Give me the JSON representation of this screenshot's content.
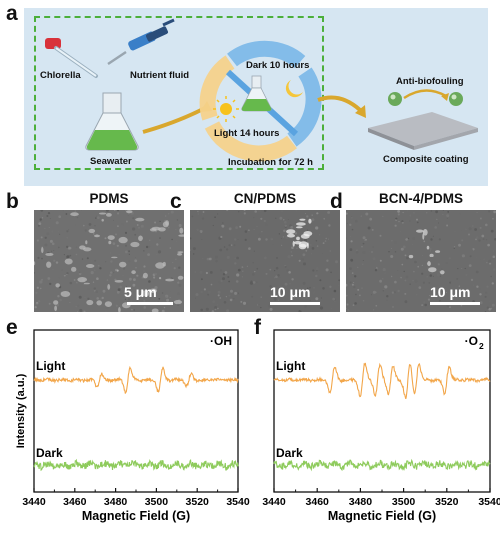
{
  "panel_letters": {
    "a": "a",
    "b": "b",
    "c": "c",
    "d": "d",
    "e": "e",
    "f": "f"
  },
  "panel_a": {
    "chlorella": "Chlorella",
    "nutrient_fluid": "Nutrient fluid",
    "seawater": "Seawater",
    "dark": "Dark 10 hours",
    "light": "Light 14 hours",
    "incubation": "Incubation for 72 h",
    "anti_biofouling": "Anti-biofouling",
    "composite_coating": "Composite coating"
  },
  "sem": [
    {
      "title": "PDMS",
      "scale": "5 μm"
    },
    {
      "title": "CN/PDMS",
      "scale": "10 μm"
    },
    {
      "title": "BCN-4/PDMS",
      "scale": "10 μm"
    }
  ],
  "chart_data": [
    {
      "type": "line",
      "title": "·OH",
      "xlabel": "Magnetic Field (G)",
      "ylabel": "Intensity (a.u.)",
      "xlim": [
        3440,
        3540
      ],
      "xticks": [
        "3440",
        "3460",
        "3480",
        "3500",
        "3520",
        "3540"
      ],
      "series": [
        {
          "name": "Light",
          "color": "#f2a64a",
          "peaks": [
            3472,
            3486,
            3502,
            3516
          ]
        },
        {
          "name": "Dark",
          "color": "#8ecb5c",
          "peaks": []
        }
      ]
    },
    {
      "type": "line",
      "title": "·O",
      "title_sub": "2",
      "xlabel": "Magnetic Field (G)",
      "ylabel": "Intensity (a.u.)",
      "xlim": [
        3440,
        3540
      ],
      "xticks": [
        "3440",
        "3460",
        "3480",
        "3500",
        "3520",
        "3540"
      ],
      "series": [
        {
          "name": "Light",
          "color": "#f2a64a",
          "peaks": [
            3467,
            3481,
            3488,
            3494,
            3502,
            3506,
            3520
          ]
        },
        {
          "name": "Dark",
          "color": "#8ecb5c",
          "peaks": []
        }
      ]
    }
  ]
}
